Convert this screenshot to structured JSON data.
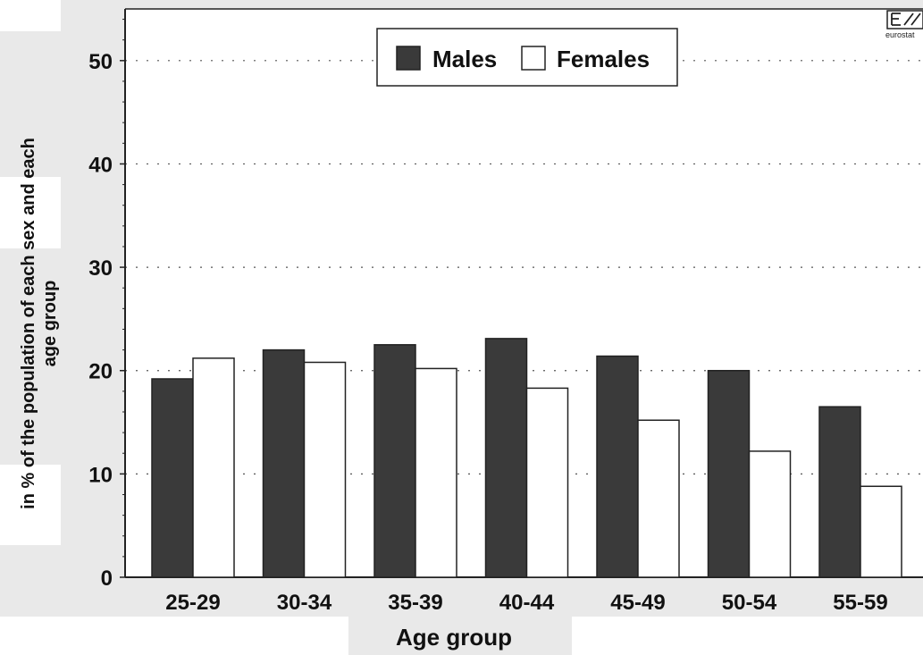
{
  "chart_data": {
    "type": "bar",
    "title": "",
    "xlabel": "Age group",
    "ylabel_lines": [
      "in % of the population of each sex and each",
      "age group"
    ],
    "categories": [
      "25-29",
      "30-34",
      "35-39",
      "40-44",
      "45-49",
      "50-54",
      "55-59"
    ],
    "series": [
      {
        "name": "Males",
        "values": [
          19.2,
          22.0,
          22.5,
          23.1,
          21.4,
          20.0,
          16.5
        ],
        "color": "#3a3a3a"
      },
      {
        "name": "Females",
        "values": [
          21.2,
          20.8,
          20.2,
          18.3,
          15.2,
          12.2,
          8.8
        ],
        "color": "#ffffff"
      }
    ],
    "ylim": [
      0,
      55
    ],
    "yticks": [
      0,
      10,
      20,
      30,
      40,
      50
    ],
    "grid": true,
    "legend_position": "top-center",
    "logo_text": "eurostat"
  }
}
